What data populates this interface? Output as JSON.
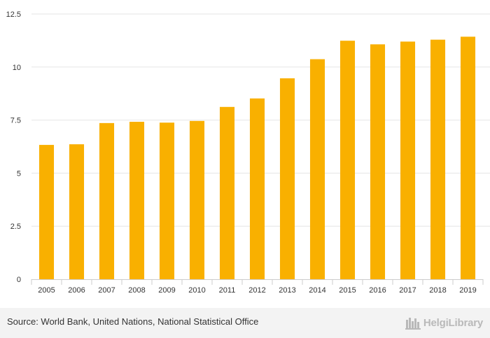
{
  "chart_data": {
    "type": "bar",
    "title": "",
    "xlabel": "",
    "ylabel": "",
    "categories": [
      "2005",
      "2006",
      "2007",
      "2008",
      "2009",
      "2010",
      "2011",
      "2012",
      "2013",
      "2014",
      "2015",
      "2016",
      "2017",
      "2018",
      "2019"
    ],
    "values": [
      6.33,
      6.36,
      7.36,
      7.42,
      7.38,
      7.46,
      8.12,
      8.52,
      9.47,
      10.37,
      11.24,
      11.07,
      11.2,
      11.29,
      11.43
    ],
    "ylim": [
      0,
      12.5
    ],
    "yticks": [
      0,
      2.5,
      5,
      7.5,
      10,
      12.5
    ],
    "ytick_labels": [
      "0",
      "2.5",
      "5",
      "7.5",
      "10",
      "12.5"
    ],
    "bar_color": "#f9b000",
    "grid": true
  },
  "footer": {
    "source": "Source: World Bank, United Nations, National Statistical Office",
    "brand": "HelgiLibrary",
    "brand_icon": "helgi-library-logo-icon"
  },
  "colors": {
    "bar": "#f9b000",
    "grid": "#e6e6e6",
    "axis": "#cccccc",
    "text": "#333333",
    "footer_bg": "#f3f3f3",
    "brand": "#b9b9b9"
  }
}
